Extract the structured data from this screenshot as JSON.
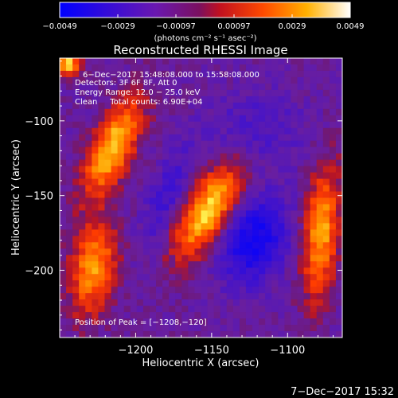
{
  "colorbar": {
    "ticks": [
      "−0.0049",
      "−0.0029",
      "−0.00097",
      "0.00097",
      "0.0029",
      "0.0049"
    ],
    "units": "(photons cm⁻² s⁻¹ asec⁻²)"
  },
  "plot": {
    "title": "Reconstructed RHESSI Image",
    "annotations": [
      "6−Dec−2017 15:48:08.000 to 15:58:08.000",
      "Detectors: 3F 6F 8F, Att 0",
      "Energy Range: 12.0 − 25.0 keV",
      "Clean     Total counts: 6.90E+04"
    ],
    "peak_text": "Position of Peak = [−1208,−120]",
    "footer_date": "7−Dec−2017 15:32"
  },
  "chart_data": {
    "type": "heatmap",
    "title": "Reconstructed RHESSI Image",
    "xlabel": "Heliocentric X (arcsec)",
    "ylabel": "Heliocentric Y (arcsec)",
    "xlim": [
      -1250,
      -1064
    ],
    "ylim": [
      -245,
      -58
    ],
    "x_ticks": [
      -1200,
      -1150,
      -1100
    ],
    "x_tick_labels": [
      "−1200",
      "−1150",
      "−1100"
    ],
    "y_ticks": [
      -100,
      -150,
      -200
    ],
    "y_tick_labels": [
      "−100",
      "−150",
      "−200"
    ],
    "colormap": [
      "#0000ff",
      "#5b1aa8",
      "#b81a40",
      "#ff3300",
      "#ff9900",
      "#ffff00",
      "#ffffff"
    ],
    "color_range": [
      -0.0049,
      0.0049
    ],
    "sources": [
      {
        "x": -1215,
        "y": -118,
        "sx": 9,
        "sy": 24,
        "rot": 25,
        "amp": 0.0044
      },
      {
        "x": -1152,
        "y": -160,
        "sx": 10,
        "sy": 24,
        "rot": 30,
        "amp": 0.0046
      },
      {
        "x": -1228,
        "y": -198,
        "sx": 10,
        "sy": 22,
        "rot": 10,
        "amp": 0.0036
      },
      {
        "x": -1078,
        "y": -175,
        "sx": 8,
        "sy": 30,
        "rot": 5,
        "amp": 0.0038
      },
      {
        "x": -1245,
        "y": -62,
        "sx": 6,
        "sy": 6,
        "rot": 0,
        "amp": 0.0045
      },
      {
        "x": -1122,
        "y": -180,
        "sx": 14,
        "sy": 20,
        "rot": 20,
        "amp": -0.0036
      },
      {
        "x": -1180,
        "y": -150,
        "sx": 8,
        "sy": 25,
        "rot": 20,
        "amp": -0.0016
      },
      {
        "x": -1120,
        "y": -105,
        "sx": 22,
        "sy": 18,
        "rot": 0,
        "amp": -0.0012
      }
    ],
    "peak": [
      -1208,
      -120
    ]
  }
}
